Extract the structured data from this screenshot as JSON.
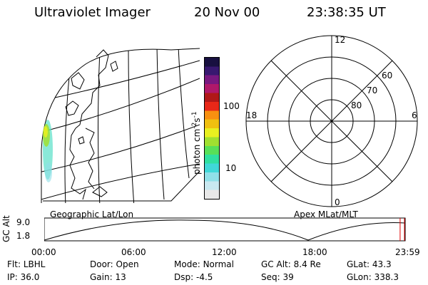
{
  "header": {
    "title": "Ultraviolet Imager",
    "date": "20 Nov 00",
    "time": "23:38:35 UT"
  },
  "colorbar": {
    "axis_label": "photon cm",
    "sup1": "-2",
    "mid": "s",
    "sup2": "-1",
    "ticks": [
      "100",
      "10"
    ],
    "colors": [
      "#e8e8e8",
      "#c8e8f0",
      "#90e0e8",
      "#40d8d8",
      "#30e0a0",
      "#58e058",
      "#a0e030",
      "#e8f020",
      "#f0c010",
      "#f89010",
      "#e82818",
      "#b01818",
      "#b0186a",
      "#781880",
      "#381870",
      "#181040"
    ]
  },
  "polar": {
    "lat_labels": [
      "60",
      "70",
      "80"
    ],
    "mlt_labels": {
      "top": "12",
      "bottom": "0",
      "left": "18",
      "right": "6"
    }
  },
  "labels": {
    "geo": "Geographic Lat/Lon",
    "apex": "Apex MLat/MLT"
  },
  "timeline": {
    "ylabel": "GC Alt",
    "ymax": "9.0",
    "ymin": "1.8",
    "ticks": [
      "00:00",
      "06:00",
      "12:00",
      "18:00",
      "23:59"
    ],
    "current_time_fraction": 0.986,
    "marker_color": "#e00000"
  },
  "info": {
    "row1": [
      {
        "label": "Flt:",
        "value": "LBHL"
      },
      {
        "label": "Door:",
        "value": "Open"
      },
      {
        "label": "Mode:",
        "value": "Normal"
      },
      {
        "label": "GC Alt:",
        "value": "8.4 Re"
      },
      {
        "label": "GLat:",
        "value": "43.3"
      }
    ],
    "row2": [
      {
        "label": "IP:",
        "value": "36.0"
      },
      {
        "label": "Gain:",
        "value": "13"
      },
      {
        "label": "Dsp:",
        "value": "-4.5"
      },
      {
        "label": "Seq:",
        "value": "39"
      },
      {
        "label": "GLon:",
        "value": "338.3"
      }
    ]
  }
}
